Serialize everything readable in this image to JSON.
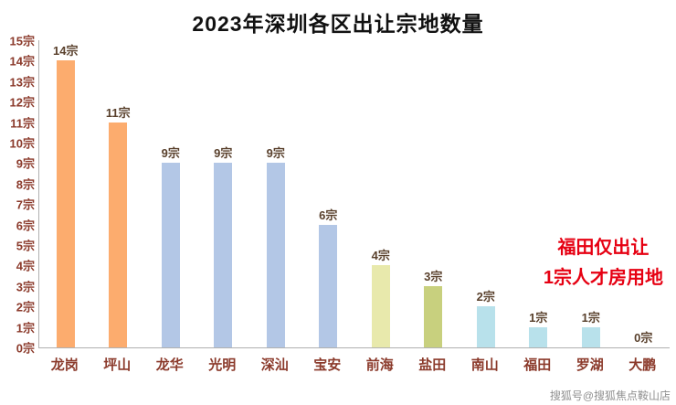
{
  "title": "2023年深圳各区出让宗地数量",
  "annotation": {
    "line1": "福田仅出让",
    "line2": "1宗人才房用地",
    "color": "#e60012"
  },
  "watermark": "搜狐号@搜狐焦点鞍山店",
  "chart_data": {
    "type": "bar",
    "title": "2023年深圳各区出让宗地数量",
    "categories": [
      "龙岗",
      "坪山",
      "龙华",
      "光明",
      "深汕",
      "宝安",
      "前海",
      "盐田",
      "南山",
      "福田",
      "罗湖",
      "大鹏"
    ],
    "values": [
      14,
      11,
      9,
      9,
      9,
      6,
      4,
      3,
      2,
      1,
      1,
      0
    ],
    "value_labels": [
      "14宗",
      "11宗",
      "9宗",
      "9宗",
      "9宗",
      "6宗",
      "4宗",
      "3宗",
      "2宗",
      "1宗",
      "1宗",
      "0宗"
    ],
    "bar_colors": [
      "#fcac6e",
      "#fcac6e",
      "#b3c7e6",
      "#b3c7e6",
      "#b3c7e6",
      "#b3c7e6",
      "#e8e9ac",
      "#c8d07e",
      "#b8e1eb",
      "#b8e1eb",
      "#b8e1eb",
      "#b8e1eb"
    ],
    "y_ticks": [
      "15宗",
      "14宗",
      "13宗",
      "12宗",
      "11宗",
      "10宗",
      "9宗",
      "8宗",
      "7宗",
      "6宗",
      "5宗",
      "4宗",
      "3宗",
      "2宗",
      "1宗",
      "0宗"
    ],
    "ylim": [
      0,
      15
    ],
    "xlabel": "",
    "ylabel": "",
    "grid": false,
    "legend": "none",
    "axis_label_color": "#8b3a2b",
    "bar_label_color": "#59402c"
  }
}
